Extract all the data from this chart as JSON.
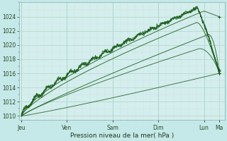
{
  "xlabel": "Pression niveau de la mer( hPa )",
  "bg_color": "#c5e8e8",
  "plot_bg_color": "#d4eeed",
  "grid_major_color": "#b8d8d0",
  "grid_minor_color": "#cce4e0",
  "line_color": "#1a5c1a",
  "ylim": [
    1009.5,
    1026.0
  ],
  "yticks": [
    1010,
    1012,
    1014,
    1016,
    1018,
    1020,
    1022,
    1024
  ],
  "day_labels": [
    "Jeu",
    "Ven",
    "Sam",
    "Dim",
    "Lun",
    "Ma"
  ],
  "day_positions": [
    0.0,
    1.0,
    2.0,
    3.0,
    4.0,
    4.33
  ],
  "xlim": [
    -0.05,
    4.45
  ],
  "xlabel_fontsize": 6.5,
  "tick_fontsize": 5.5
}
